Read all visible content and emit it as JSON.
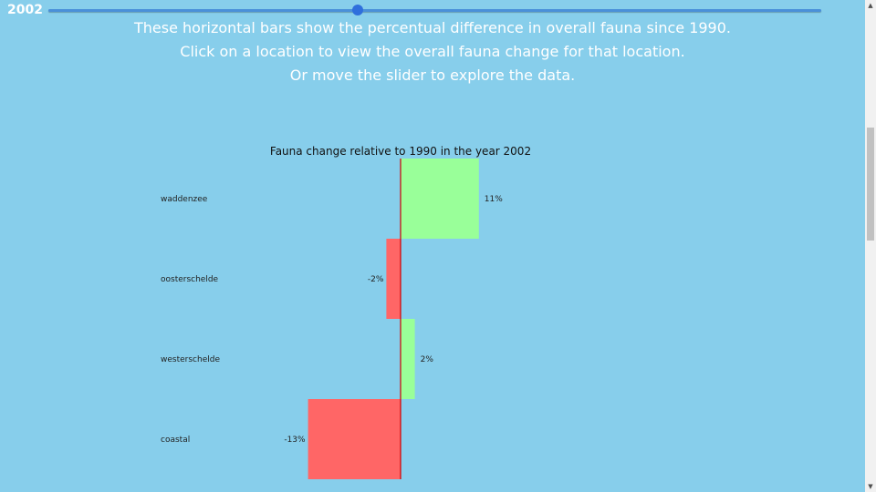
{
  "slider": {
    "year": "2002",
    "min_year": 1990,
    "max_year": 2020,
    "value_year": 2002
  },
  "instructions": {
    "line1": "These horizontal bars show the percentual difference in overall fauna since 1990.",
    "line2": "Click on a location to view the overall fauna change for that location.",
    "line3": "Or move the slider to explore the data."
  },
  "colors": {
    "positive": "#99ff99",
    "negative": "#ff6666",
    "axis": "#cc0000",
    "background": "#87ceeb"
  },
  "chart_data": {
    "type": "bar",
    "orientation": "horizontal",
    "title": "Fauna change relative to 1990 in the year 2002",
    "categories": [
      "waddenzee",
      "oosterschelde",
      "westerschelde",
      "coastal"
    ],
    "values": [
      11,
      -2,
      2,
      -13
    ],
    "value_labels": [
      "11%",
      "-2%",
      "2%",
      "-13%"
    ],
    "xlim": [
      -13,
      11
    ],
    "xlabel": "",
    "ylabel": ""
  }
}
